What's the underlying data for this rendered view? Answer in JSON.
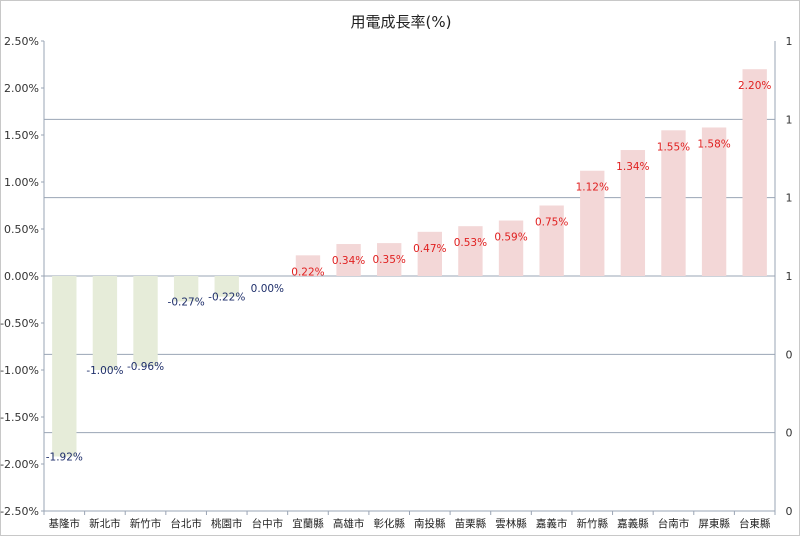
{
  "chart_data": {
    "type": "bar",
    "title": "用電成長率(%)",
    "categories": [
      "基隆市",
      "新北市",
      "新竹市",
      "台北市",
      "桃園市",
      "台中市",
      "宜蘭縣",
      "高雄市",
      "彰化縣",
      "南投縣",
      "苗栗縣",
      "雲林縣",
      "嘉義市",
      "新竹縣",
      "嘉義縣",
      "台南市",
      "屏東縣",
      "台東縣"
    ],
    "values": [
      -1.92,
      -1.0,
      -0.96,
      -0.27,
      -0.22,
      0.0,
      0.22,
      0.34,
      0.35,
      0.47,
      0.53,
      0.59,
      0.75,
      1.12,
      1.34,
      1.55,
      1.58,
      2.2
    ],
    "data_labels": [
      "-1.92%",
      "-1.00%",
      "-0.96%",
      "-0.27%",
      "-0.22%",
      "0.00%",
      "0.22%",
      "0.34%",
      "0.35%",
      "0.47%",
      "0.53%",
      "0.59%",
      "0.75%",
      "1.12%",
      "1.34%",
      "1.55%",
      "1.58%",
      "2.20%"
    ],
    "ylim": [
      -2.5,
      2.5
    ],
    "y_ticks": [
      "2.50%",
      "2.00%",
      "1.50%",
      "1.00%",
      "0.50%",
      "0.00%",
      "-0.50%",
      "-1.00%",
      "-1.50%",
      "-2.00%",
      "-2.50%"
    ],
    "secondary_axis_ticks": [
      "1",
      "1",
      "1",
      "1",
      "0",
      "0",
      "0"
    ],
    "grid": true,
    "colors": {
      "negative_bar": "#e6ecd9",
      "positive_bar": "#f3d7d7",
      "negative_label": "#1f2f6b",
      "positive_label": "#e02020",
      "gridline": "#9aa4b4",
      "axis": "#9aa4b4"
    }
  }
}
